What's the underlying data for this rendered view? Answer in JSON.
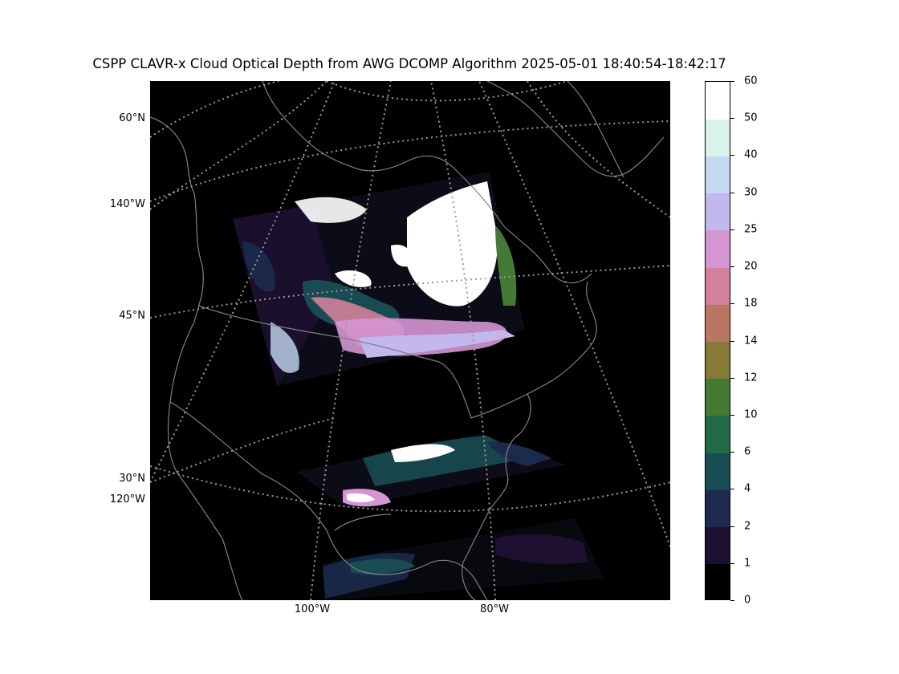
{
  "title": "CSPP CLAVR-x Cloud Optical Depth from AWG DCOMP Algorithm 2025-05-01 18:40:54-18:42:17",
  "map": {
    "background": "#000000",
    "coastline_color": "#808080",
    "graticule_color": "#9a9a9a",
    "lat_labels": [
      "60°N",
      "45°N",
      "30°N"
    ],
    "lon_labels_left": [
      "140°W",
      "120°W"
    ],
    "lon_labels_bottom": [
      "100°W",
      "80°W"
    ]
  },
  "colorbar": {
    "boundaries": [
      0,
      1,
      2,
      4,
      6,
      10,
      12,
      14,
      18,
      20,
      25,
      30,
      40,
      50,
      60
    ],
    "tick_labels": [
      "0",
      "1",
      "2",
      "4",
      "6",
      "10",
      "12",
      "14",
      "18",
      "20",
      "25",
      "30",
      "40",
      "50",
      "60"
    ],
    "colors": [
      "#000000",
      "#1d1030",
      "#1c2b4d",
      "#184b52",
      "#1f6a47",
      "#457a35",
      "#857b37",
      "#b97762",
      "#d3809a",
      "#d595d3",
      "#c3b8ee",
      "#c5d9f2",
      "#d9f2ec",
      "#ffffff"
    ]
  }
}
